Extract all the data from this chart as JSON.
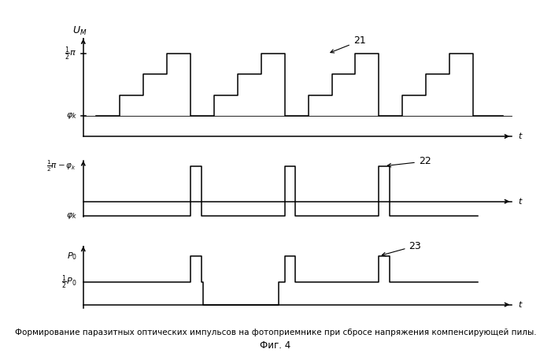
{
  "fig_width": 7.0,
  "fig_height": 4.48,
  "dpi": 100,
  "background": "#ffffff",
  "title_text": "Формирование паразитных оптических импульсов на фотоприемнике при сбросе напряжения компенсирующей пилы.",
  "fig_label": "Фиг. 4",
  "label_21": "21",
  "label_22": "22",
  "label_23": "23",
  "phi_k": 0.25,
  "half_pi": 1.0,
  "xmax": 10.0,
  "lw": 1.1
}
